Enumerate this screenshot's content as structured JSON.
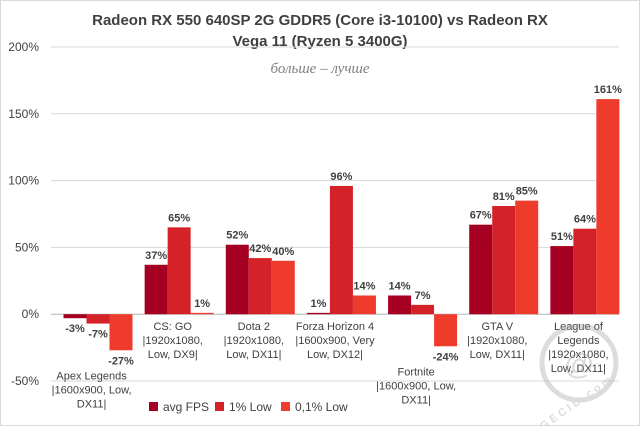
{
  "chart_data": {
    "type": "bar",
    "title_lines": [
      "Radeon RX 550 640SP 2G GDDR5 (Core i3-10100) vs Radeon RX",
      "Vega 11 (Ryzen 5 3400G)"
    ],
    "subtitle": "больше – лучше",
    "ylim": [
      -50,
      200
    ],
    "y_ticks": [
      -50,
      0,
      50,
      100,
      150,
      200
    ],
    "y_tick_labels": [
      "-50%",
      "0%",
      "50%",
      "100%",
      "150%",
      "200%"
    ],
    "grid": true,
    "legend_position": "bottom",
    "categories": [
      [
        "Apex Legends",
        "|1600x900, Low,",
        "DX11|"
      ],
      [
        "CS: GO",
        "|1920x1080,",
        "Low, DX9|"
      ],
      [
        "Dota 2",
        "|1920x1080,",
        "Low, DX11|"
      ],
      [
        "Forza Horizon 4",
        "|1600x900, Very",
        "Low, DX12|"
      ],
      [
        "Fortnite",
        "|1600x900, Low,",
        "DX11|"
      ],
      [
        "GTA V",
        "|1920x1080,",
        "Low, DX11|"
      ],
      [
        "League of",
        "Legends",
        "|1920x1080,",
        "Low, DX11|"
      ]
    ],
    "series": [
      {
        "name": "avg FPS",
        "color": "#a50021",
        "values": [
          -3,
          37,
          52,
          1,
          14,
          67,
          51
        ],
        "labels": [
          "-3%",
          "37%",
          "52%",
          "1%",
          "14%",
          "67%",
          "51%"
        ]
      },
      {
        "name": "1% Low",
        "color": "#d42228",
        "values": [
          -7,
          65,
          42,
          96,
          7,
          81,
          64
        ],
        "labels": [
          "-7%",
          "65%",
          "42%",
          "96%",
          "7%",
          "81%",
          "64%"
        ]
      },
      {
        "name": "0,1% Low",
        "color": "#ef3b2c",
        "values": [
          -27,
          1,
          40,
          14,
          -24,
          85,
          161
        ],
        "labels": [
          "-27%",
          "1%",
          "40%",
          "14%",
          "-24%",
          "85%",
          "161%"
        ]
      }
    ]
  },
  "watermark": {
    "text": "GECID.com",
    "glyph": "@"
  }
}
